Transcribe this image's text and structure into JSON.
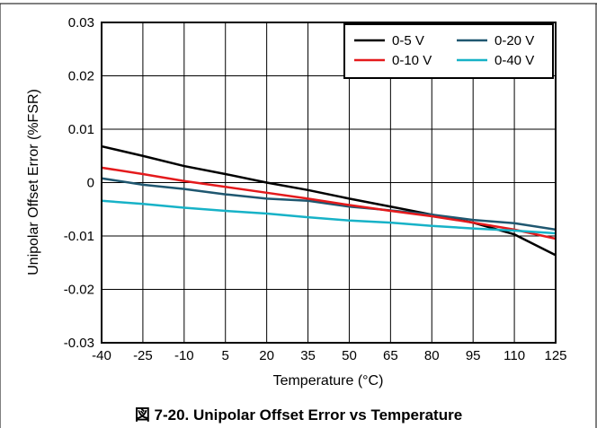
{
  "caption": "図 7-20. Unipolar Offset Error vs Temperature",
  "chart_data": {
    "type": "line",
    "title": "",
    "xlabel": "Temperature (°C)",
    "ylabel": "Unipolar Offset Error (%FSR)",
    "x": [
      -40,
      -25,
      -10,
      5,
      20,
      35,
      50,
      65,
      80,
      95,
      110,
      125
    ],
    "xlim": [
      -40,
      125
    ],
    "ylim": [
      -0.03,
      0.03
    ],
    "x_ticks": [
      "-40",
      "-25",
      "-10",
      "5",
      "20",
      "35",
      "50",
      "65",
      "80",
      "95",
      "110",
      "125"
    ],
    "y_ticks": [
      {
        "value": 0.03,
        "label": "0.03"
      },
      {
        "value": 0.02,
        "label": "0.02"
      },
      {
        "value": 0.01,
        "label": "0.01"
      },
      {
        "value": 0,
        "label": "0"
      },
      {
        "value": -0.01,
        "label": "-0.01"
      },
      {
        "value": -0.02,
        "label": "-0.02"
      },
      {
        "value": -0.03,
        "label": "-0.03"
      }
    ],
    "grid": true,
    "legend_position": "top-right",
    "series": [
      {
        "name": "0-5 V",
        "color": "#000000",
        "values": [
          0.0068,
          0.005,
          0.0031,
          0.0016,
          0.0,
          -0.0014,
          -0.003,
          -0.0045,
          -0.006,
          -0.0075,
          -0.0097,
          -0.0136
        ]
      },
      {
        "name": "0-20 V",
        "color": "#1f5770",
        "values": [
          0.0008,
          -0.0004,
          -0.0012,
          -0.0022,
          -0.003,
          -0.0034,
          -0.0045,
          -0.0052,
          -0.006,
          -0.007,
          -0.0076,
          -0.0088
        ]
      },
      {
        "name": "0-10 V",
        "color": "#e41a1c",
        "values": [
          0.0028,
          0.0016,
          0.0003,
          -0.0008,
          -0.0019,
          -0.003,
          -0.0042,
          -0.0053,
          -0.0063,
          -0.0075,
          -0.0088,
          -0.0105
        ]
      },
      {
        "name": "0-40 V",
        "color": "#17b2c7",
        "values": [
          -0.0034,
          -0.004,
          -0.0047,
          -0.0053,
          -0.0058,
          -0.0065,
          -0.0071,
          -0.0075,
          -0.0081,
          -0.0086,
          -0.009,
          -0.0095
        ]
      }
    ]
  }
}
